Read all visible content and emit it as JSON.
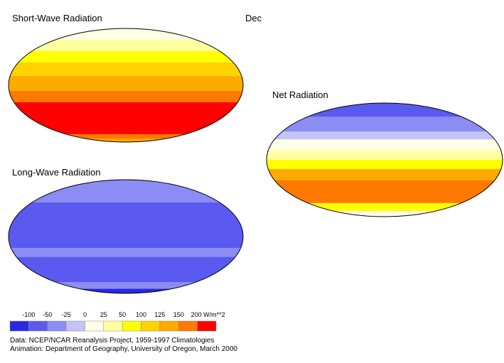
{
  "maps": [
    {
      "title": "Short-Wave Radiation"
    },
    {
      "title": "Long-Wave Radiation"
    },
    {
      "title": "Net Radiation"
    }
  ],
  "month": "Dec",
  "legend": {
    "colors": [
      "#2828e6",
      "#5a5af0",
      "#8c8cf5",
      "#c3c3fa",
      "#ffffe6",
      "#ffffa0",
      "#ffff00",
      "#ffd200",
      "#ffaa00",
      "#ff7800",
      "#ff0000"
    ],
    "labels": [
      "-100",
      "-50",
      "-25",
      "0",
      "25",
      "50",
      "100",
      "125",
      "150",
      "200 W/m**2"
    ]
  },
  "credits": [
    "Data:  NCEP/NCAR Reanalysis Project, 1959-1997 Climatologies",
    "Animation:  Department of Geography, University of Oregon, March 2000"
  ]
}
